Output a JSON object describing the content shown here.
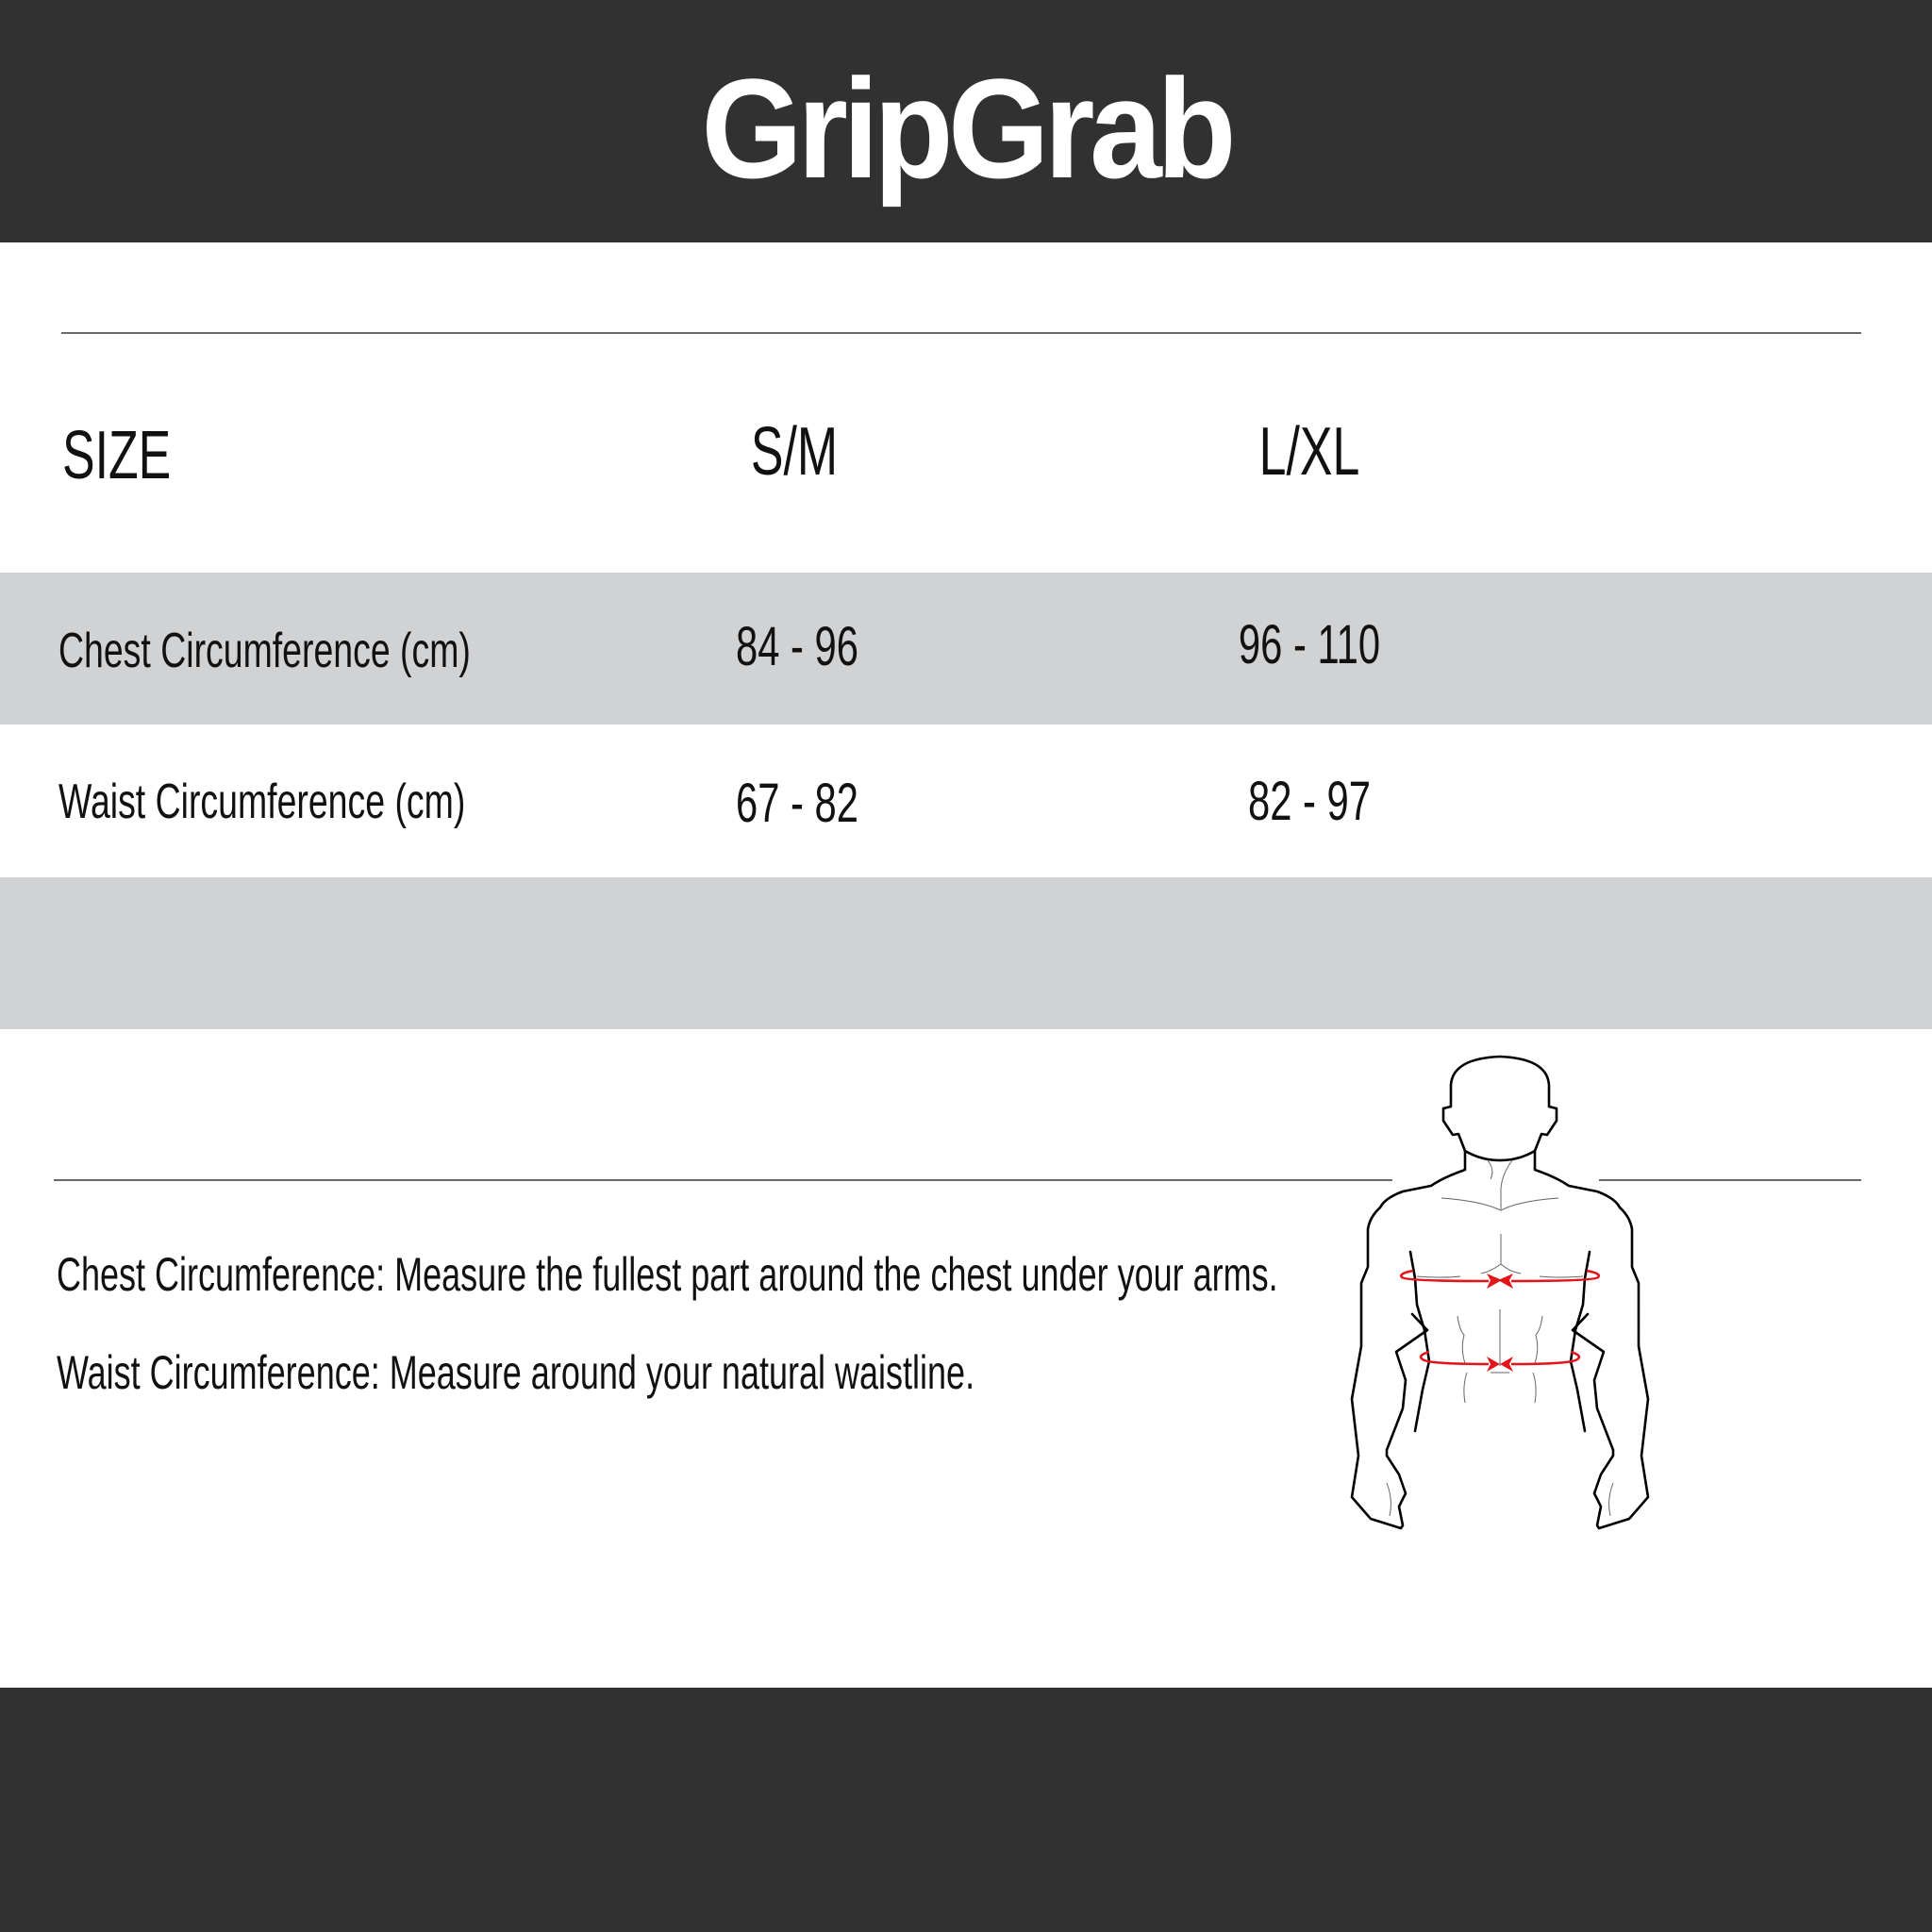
{
  "brand": {
    "logo_text": "GripGrab"
  },
  "colors": {
    "dark_bar": "#313131",
    "band_gray": "#d1d2d4",
    "arrow_red": "#e3151b"
  },
  "table": {
    "header": {
      "label": "SIZE",
      "sizes": [
        "S/M",
        "L/XL"
      ]
    },
    "rows": [
      {
        "label": "Chest Circumference (cm)",
        "values": [
          "84 - 96",
          "96 - 110"
        ]
      },
      {
        "label": "Waist Circumference (cm)",
        "values": [
          "67 - 82",
          "82 - 97"
        ]
      }
    ]
  },
  "instructions": [
    "Chest Circumference: Measure the fullest part around the chest under your arms.",
    "Waist Circumference: Measure around your natural waistline."
  ],
  "illustration": {
    "icon": "body-measurement-figure"
  }
}
